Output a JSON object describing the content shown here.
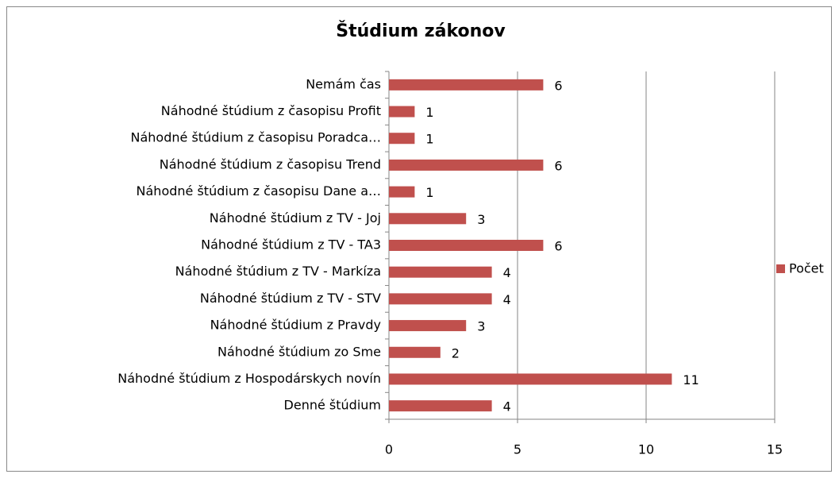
{
  "chart_data": {
    "type": "bar",
    "orientation": "horizontal",
    "title": "Štúdium zákonov",
    "categories": [
      "Nemám čas",
      "Náhodné štúdium z časopisu Profit",
      "Náhodné štúdium z časopisu Poradca…",
      "Náhodné štúdium z časopisu Trend",
      "Náhodné štúdium z časopisu Dane a…",
      "Náhodné štúdium z TV - Joj",
      "Náhodné štúdium z TV - TA3",
      "Náhodné štúdium z TV - Markíza",
      "Náhodné štúdium z TV - STV",
      "Náhodné štúdium z Pravdy",
      "Náhodné štúdium zo Sme",
      "Náhodné štúdium z Hospodárskych novín",
      "Denné štúdium"
    ],
    "series": [
      {
        "name": "Počet",
        "color": "#c0504d",
        "values": [
          6,
          1,
          1,
          6,
          1,
          3,
          6,
          4,
          4,
          3,
          2,
          11,
          4
        ]
      }
    ],
    "xlim": [
      0,
      15
    ],
    "xticks": [
      0,
      5,
      10,
      15
    ],
    "grid": true,
    "legend": "right"
  }
}
